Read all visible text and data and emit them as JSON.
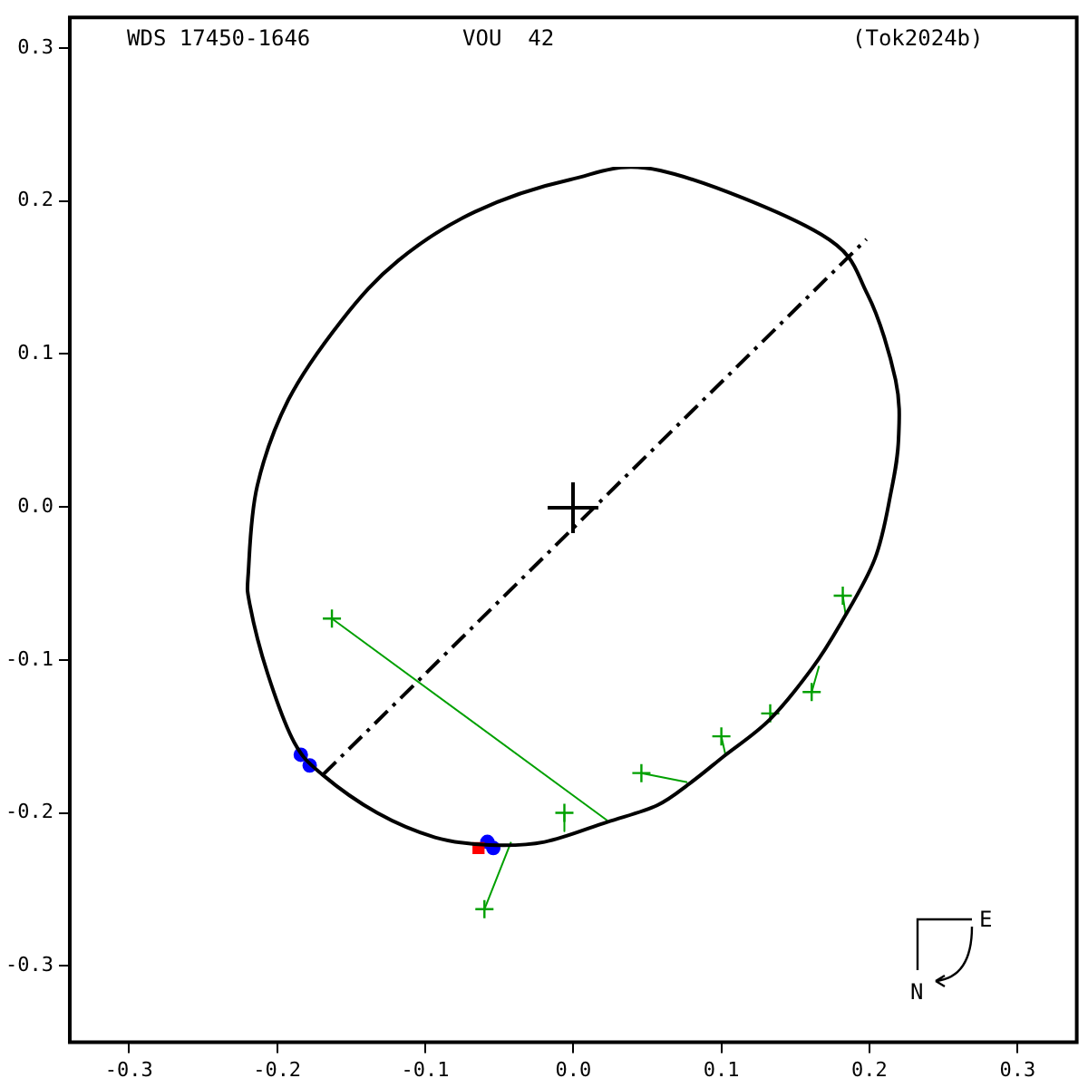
{
  "chart_data": {
    "type": "scatter",
    "annotations": [
      "WDS 17450-1646",
      "VOU  42",
      "(Tok2024b)",
      "E",
      "N"
    ],
    "xlim": [
      -0.34,
      0.34
    ],
    "ylim": [
      -0.35,
      0.32
    ],
    "xticks": [
      -0.3,
      -0.2,
      -0.1,
      {
        "value": 0,
        "label": "0.0"
      },
      0.1,
      0.2,
      0.3
    ],
    "yticks": [
      -0.3,
      -0.2,
      -0.1,
      {
        "value": 0,
        "label": "0.0"
      },
      0.1,
      0.2,
      0.3
    ],
    "grid": false,
    "legend": false,
    "series": [
      {
        "type": "line",
        "color": "#000000",
        "marker": "none",
        "line_style": "dashed",
        "x": [
          -0.169,
          0.198
        ],
        "values": [
          -0.175,
          0.175
        ]
      },
      {
        "type": "line",
        "color": "#00a000",
        "marker": "none",
        "line_style": "solid",
        "x": [
          -0.163,
          0.023,
          null,
          -0.06,
          -0.042,
          null,
          -0.006,
          -0.006,
          null,
          0.046,
          0.077,
          null,
          0.1,
          0.103,
          null,
          0.161,
          0.166,
          null,
          0.182,
          0.184
        ],
        "values": [
          -0.073,
          -0.205,
          null,
          -0.263,
          -0.219,
          null,
          -0.2,
          -0.212,
          null,
          -0.174,
          -0.18,
          null,
          -0.15,
          -0.163,
          null,
          -0.121,
          -0.104,
          null,
          -0.058,
          -0.071
        ]
      },
      {
        "type": "scatter",
        "color": "#00a000",
        "marker": "cross",
        "x": [
          -0.163,
          -0.06,
          -0.006,
          0.046,
          0.1,
          0.133,
          0.161,
          0.182
        ],
        "values": [
          -0.073,
          -0.263,
          -0.2,
          -0.174,
          -0.15,
          -0.135,
          -0.121,
          -0.058
        ]
      },
      {
        "type": "scatter",
        "color": "#0000ff",
        "marker": "circle",
        "x": [
          -0.184,
          -0.178,
          -0.058,
          -0.054
        ],
        "values": [
          -0.162,
          -0.169,
          -0.219,
          -0.223
        ]
      },
      {
        "type": "scatter",
        "color": "#ff0000",
        "marker": "square",
        "x": [
          -0.064
        ],
        "values": [
          -0.223
        ]
      }
    ]
  }
}
